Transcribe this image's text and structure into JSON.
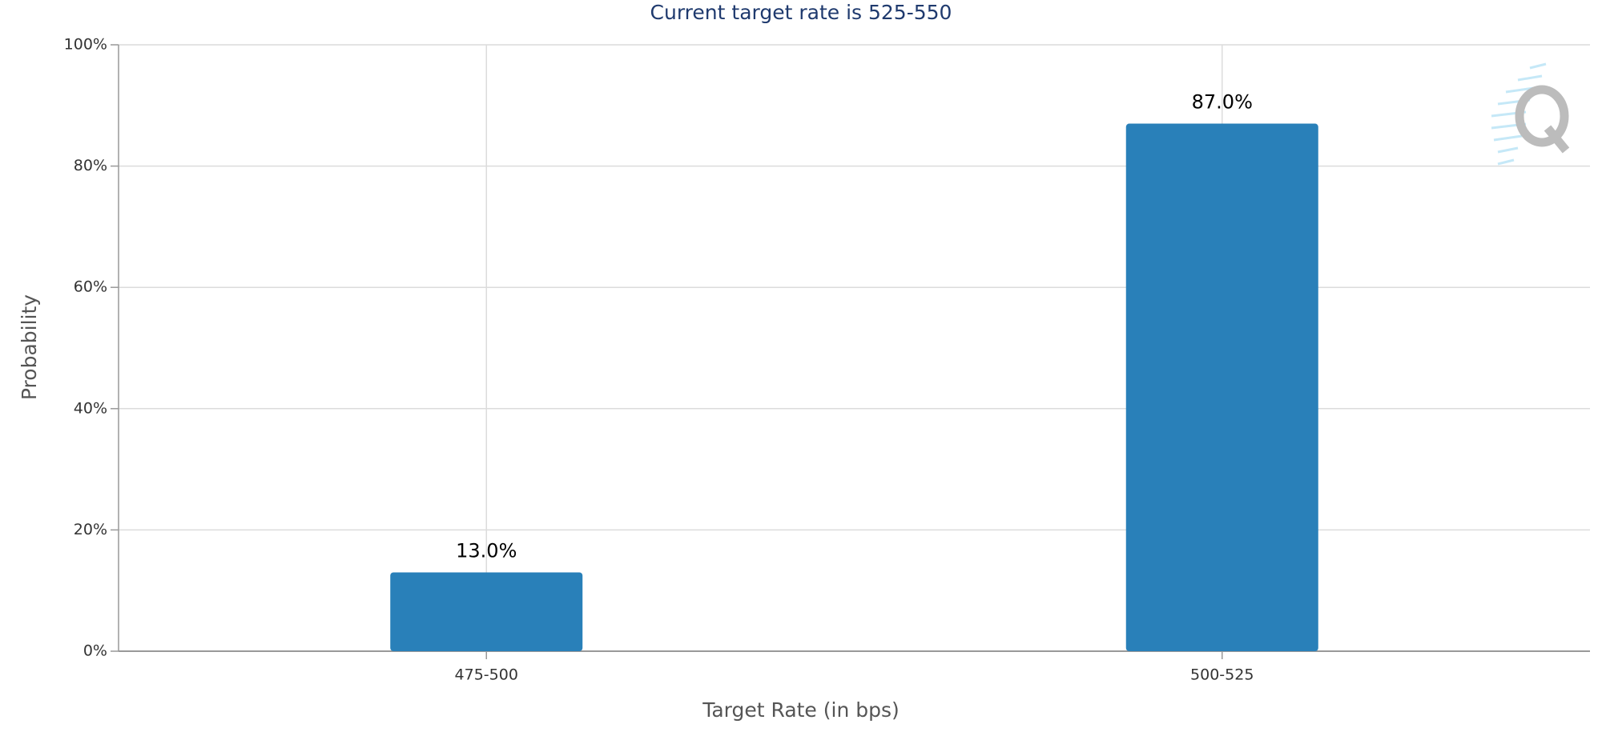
{
  "chart_data": {
    "type": "bar",
    "title": "Current target rate is 525-550",
    "x_label": "Target Rate (in bps)",
    "y_label": "Probability",
    "categories": [
      "475-500",
      "500-525"
    ],
    "values": [
      13.0,
      87.0
    ],
    "value_labels": [
      "13.0%",
      "87.0%"
    ],
    "color": "#2980b9",
    "ylim": [
      0,
      100
    ],
    "yticks": [
      {
        "value": 0,
        "label": "0%"
      },
      {
        "value": 20,
        "label": "20%"
      },
      {
        "value": 40,
        "label": "40%"
      },
      {
        "value": 60,
        "label": "60%"
      },
      {
        "value": 80,
        "label": "80%"
      },
      {
        "value": 100,
        "label": "100%"
      }
    ],
    "grid": true
  }
}
